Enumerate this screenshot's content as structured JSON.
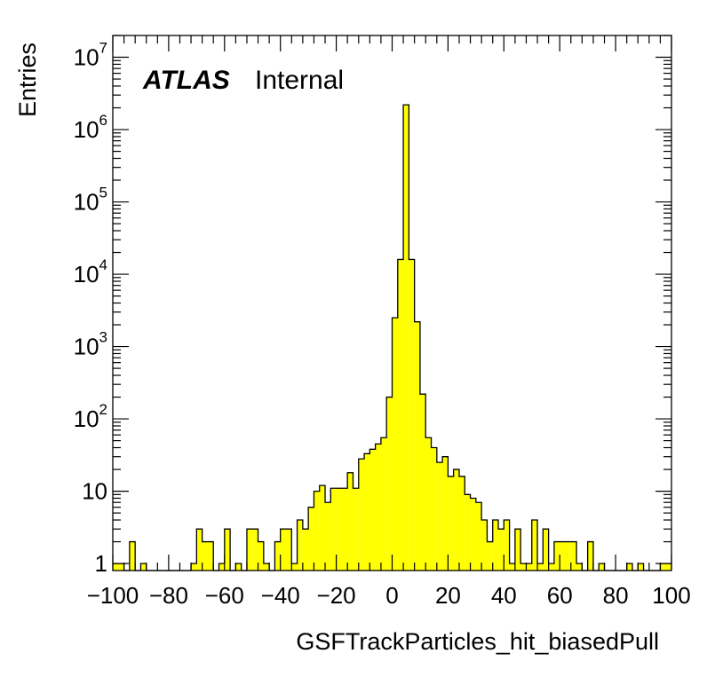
{
  "chart_data": {
    "type": "bar",
    "subtype": "histogram",
    "experiment_label": "ATLAS",
    "status_label": "Internal",
    "xlabel": "GSFTrackParticles_hit_biasedPull",
    "ylabel": "Entries",
    "xlim": [
      -100,
      100
    ],
    "ylim": [
      0.8,
      20000000
    ],
    "y_scale": "log",
    "bin_width": 2,
    "x_ticks": [
      -100,
      -80,
      -60,
      -40,
      -20,
      0,
      20,
      40,
      60,
      80,
      100
    ],
    "x_tick_labels": [
      "−100",
      "−80",
      "−60",
      "−40",
      "−20",
      "0",
      "20",
      "40",
      "60",
      "80",
      "100"
    ],
    "y_ticks": [
      {
        "value": 1,
        "base": "1",
        "exp": ""
      },
      {
        "value": 10,
        "base": "10",
        "exp": ""
      },
      {
        "value": 100,
        "base": "10",
        "exp": "2"
      },
      {
        "value": 1000,
        "base": "10",
        "exp": "3"
      },
      {
        "value": 10000,
        "base": "10",
        "exp": "4"
      },
      {
        "value": 100000,
        "base": "10",
        "exp": "5"
      },
      {
        "value": 1000000,
        "base": "10",
        "exp": "6"
      },
      {
        "value": 10000000,
        "base": "10",
        "exp": "7"
      }
    ],
    "fill_color": "#ffff00",
    "line_color": "#000000",
    "grid": false,
    "legend": "none",
    "bins": [
      {
        "x0": -100,
        "value": 1
      },
      {
        "x0": -98,
        "value": 1
      },
      {
        "x0": -96,
        "value": 0
      },
      {
        "x0": -94,
        "value": 2
      },
      {
        "x0": -92,
        "value": 0
      },
      {
        "x0": -90,
        "value": 1
      },
      {
        "x0": -88,
        "value": 0
      },
      {
        "x0": -86,
        "value": 0
      },
      {
        "x0": -84,
        "value": 0
      },
      {
        "x0": -82,
        "value": 0
      },
      {
        "x0": -80,
        "value": 0
      },
      {
        "x0": -78,
        "value": 0
      },
      {
        "x0": -76,
        "value": 0
      },
      {
        "x0": -74,
        "value": 0
      },
      {
        "x0": -72,
        "value": 1
      },
      {
        "x0": -70,
        "value": 3
      },
      {
        "x0": -68,
        "value": 2
      },
      {
        "x0": -66,
        "value": 2
      },
      {
        "x0": -64,
        "value": 0
      },
      {
        "x0": -62,
        "value": 1
      },
      {
        "x0": -60,
        "value": 3
      },
      {
        "x0": -58,
        "value": 0
      },
      {
        "x0": -56,
        "value": 1
      },
      {
        "x0": -54,
        "value": 0
      },
      {
        "x0": -52,
        "value": 3
      },
      {
        "x0": -50,
        "value": 3
      },
      {
        "x0": -48,
        "value": 2
      },
      {
        "x0": -46,
        "value": 1
      },
      {
        "x0": -44,
        "value": 0
      },
      {
        "x0": -42,
        "value": 2
      },
      {
        "x0": -40,
        "value": 3
      },
      {
        "x0": -38,
        "value": 3
      },
      {
        "x0": -36,
        "value": 1
      },
      {
        "x0": -34,
        "value": 4
      },
      {
        "x0": -32,
        "value": 3
      },
      {
        "x0": -30,
        "value": 6
      },
      {
        "x0": -28,
        "value": 10
      },
      {
        "x0": -26,
        "value": 12
      },
      {
        "x0": -24,
        "value": 7
      },
      {
        "x0": -22,
        "value": 11
      },
      {
        "x0": -20,
        "value": 11
      },
      {
        "x0": -18,
        "value": 11
      },
      {
        "x0": -16,
        "value": 18
      },
      {
        "x0": -14,
        "value": 11
      },
      {
        "x0": -12,
        "value": 28
      },
      {
        "x0": -10,
        "value": 33
      },
      {
        "x0": -8,
        "value": 38
      },
      {
        "x0": -6,
        "value": 45
      },
      {
        "x0": -4,
        "value": 55
      },
      {
        "x0": -2,
        "value": 200
      },
      {
        "x0": 0,
        "value": 2500
      },
      {
        "x0": 2,
        "value": 16000
      },
      {
        "x0": 4,
        "value": 2200000
      },
      {
        "x0": 6,
        "value": 16000
      },
      {
        "x0": 8,
        "value": 2200
      },
      {
        "x0": 10,
        "value": 220
      },
      {
        "x0": 12,
        "value": 55
      },
      {
        "x0": 14,
        "value": 40
      },
      {
        "x0": 16,
        "value": 25
      },
      {
        "x0": 18,
        "value": 30
      },
      {
        "x0": 20,
        "value": 16
      },
      {
        "x0": 22,
        "value": 20
      },
      {
        "x0": 24,
        "value": 16
      },
      {
        "x0": 26,
        "value": 9
      },
      {
        "x0": 28,
        "value": 8
      },
      {
        "x0": 30,
        "value": 7
      },
      {
        "x0": 32,
        "value": 4
      },
      {
        "x0": 34,
        "value": 2
      },
      {
        "x0": 36,
        "value": 4
      },
      {
        "x0": 38,
        "value": 3
      },
      {
        "x0": 40,
        "value": 4
      },
      {
        "x0": 42,
        "value": 1
      },
      {
        "x0": 44,
        "value": 3
      },
      {
        "x0": 46,
        "value": 1
      },
      {
        "x0": 48,
        "value": 1
      },
      {
        "x0": 50,
        "value": 4
      },
      {
        "x0": 52,
        "value": 1
      },
      {
        "x0": 54,
        "value": 3
      },
      {
        "x0": 56,
        "value": 1
      },
      {
        "x0": 58,
        "value": 2
      },
      {
        "x0": 60,
        "value": 2
      },
      {
        "x0": 62,
        "value": 2
      },
      {
        "x0": 64,
        "value": 2
      },
      {
        "x0": 66,
        "value": 1
      },
      {
        "x0": 68,
        "value": 0
      },
      {
        "x0": 70,
        "value": 2
      },
      {
        "x0": 72,
        "value": 0
      },
      {
        "x0": 74,
        "value": 1
      },
      {
        "x0": 76,
        "value": 0
      },
      {
        "x0": 78,
        "value": 0
      },
      {
        "x0": 80,
        "value": 0
      },
      {
        "x0": 82,
        "value": 0
      },
      {
        "x0": 84,
        "value": 1
      },
      {
        "x0": 86,
        "value": 0
      },
      {
        "x0": 88,
        "value": 1
      },
      {
        "x0": 90,
        "value": 0
      },
      {
        "x0": 92,
        "value": 0
      },
      {
        "x0": 94,
        "value": 0
      },
      {
        "x0": 96,
        "value": 1
      },
      {
        "x0": 98,
        "value": 1
      }
    ]
  }
}
